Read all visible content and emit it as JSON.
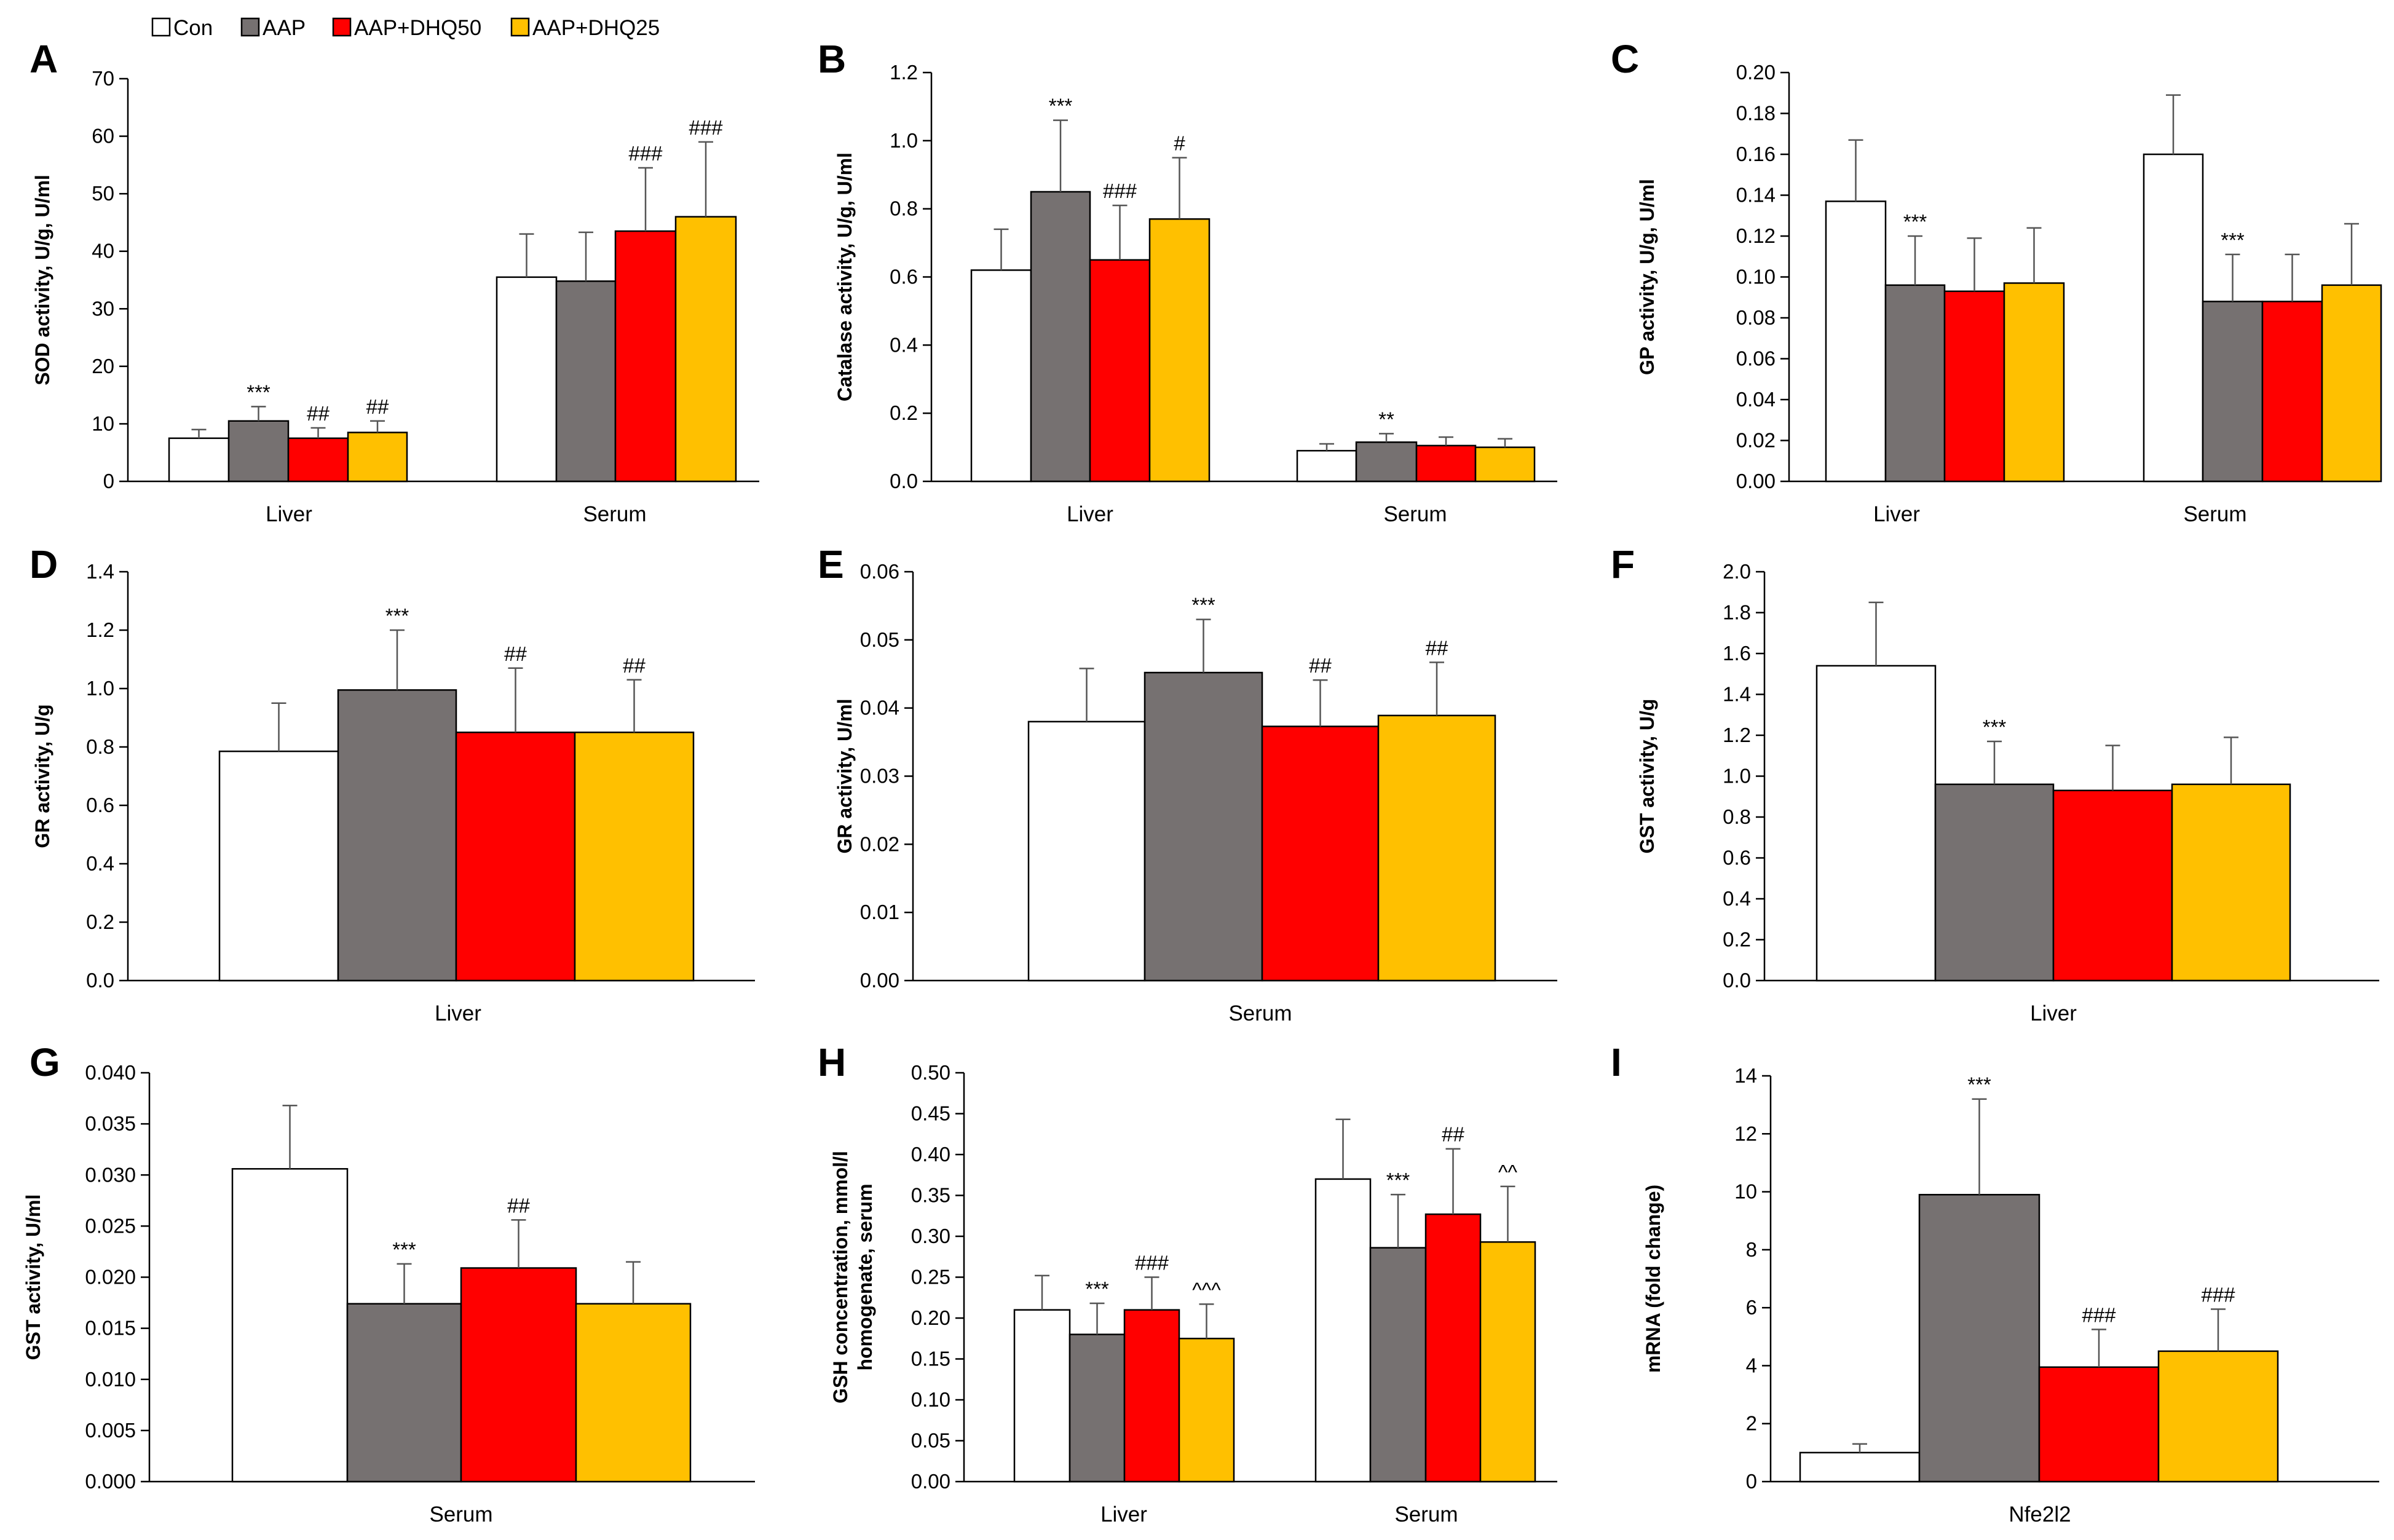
{
  "legend": {
    "entries": [
      {
        "label": "Con",
        "color": "#ffffff"
      },
      {
        "label": "AAP",
        "color": "#767171"
      },
      {
        "label": "AAP+DHQ50",
        "color": "#ff0000"
      },
      {
        "label": "AAP+DHQ25",
        "color": "#ffc000"
      }
    ]
  },
  "chart_data": [
    {
      "panel": "A",
      "type": "bar",
      "ylabel": "SOD activity, U/g, U/ml",
      "ylim": [
        0,
        70
      ],
      "yticks": [
        "0",
        "10",
        "20",
        "30",
        "40",
        "50",
        "60",
        "70"
      ],
      "categories": [
        "Liver",
        "Serum"
      ],
      "series": [
        {
          "name": "Con",
          "values": [
            7.5,
            35.5
          ],
          "errors": [
            1.5,
            7.5
          ],
          "sig": [
            "",
            ""
          ]
        },
        {
          "name": "AAP",
          "values": [
            10.5,
            34.8
          ],
          "errors": [
            2.5,
            8.5
          ],
          "sig": [
            "***",
            ""
          ]
        },
        {
          "name": "AAP+DHQ50",
          "values": [
            7.5,
            43.5
          ],
          "errors": [
            1.8,
            11.0
          ],
          "sig": [
            "##",
            "###"
          ]
        },
        {
          "name": "AAP+DHQ25",
          "values": [
            8.5,
            46.0
          ],
          "errors": [
            2.0,
            13.0
          ],
          "sig": [
            "##",
            "###"
          ]
        }
      ]
    },
    {
      "panel": "B",
      "type": "bar",
      "ylabel": "Catalase activity, U/g, U/ml",
      "ylim": [
        0,
        1.2
      ],
      "yticks": [
        "0.0",
        "0.2",
        "0.4",
        "0.6",
        "0.8",
        "1.0",
        "1.2"
      ],
      "categories": [
        "Liver",
        "Serum"
      ],
      "series": [
        {
          "name": "Con",
          "values": [
            0.62,
            0.09
          ],
          "errors": [
            0.12,
            0.02
          ],
          "sig": [
            "",
            ""
          ]
        },
        {
          "name": "AAP",
          "values": [
            0.85,
            0.115
          ],
          "errors": [
            0.21,
            0.025
          ],
          "sig": [
            "***",
            "**"
          ]
        },
        {
          "name": "AAP+DHQ50",
          "values": [
            0.65,
            0.105
          ],
          "errors": [
            0.16,
            0.025
          ],
          "sig": [
            "###",
            ""
          ]
        },
        {
          "name": "AAP+DHQ25",
          "values": [
            0.77,
            0.1
          ],
          "errors": [
            0.18,
            0.025
          ],
          "sig": [
            "#",
            ""
          ]
        }
      ]
    },
    {
      "panel": "C",
      "type": "bar",
      "ylabel": "GP activity, U/g, U/ml",
      "ylim": [
        0,
        0.2
      ],
      "yticks": [
        "0.00",
        "0.02",
        "0.04",
        "0.06",
        "0.08",
        "0.10",
        "0.12",
        "0.14",
        "0.16",
        "0.18",
        "0.20"
      ],
      "categories": [
        "Liver",
        "Serum"
      ],
      "series": [
        {
          "name": "Con",
          "values": [
            0.137,
            0.16
          ],
          "errors": [
            0.03,
            0.029
          ],
          "sig": [
            "",
            ""
          ]
        },
        {
          "name": "AAP",
          "values": [
            0.096,
            0.088
          ],
          "errors": [
            0.024,
            0.023
          ],
          "sig": [
            "***",
            "***"
          ]
        },
        {
          "name": "AAP+DHQ50",
          "values": [
            0.093,
            0.088
          ],
          "errors": [
            0.026,
            0.023
          ],
          "sig": [
            "",
            ""
          ]
        },
        {
          "name": "AAP+DHQ25",
          "values": [
            0.097,
            0.096
          ],
          "errors": [
            0.027,
            0.03
          ],
          "sig": [
            "",
            ""
          ]
        }
      ]
    },
    {
      "panel": "D",
      "type": "bar",
      "ylabel": "GR activity, U/g",
      "ylim": [
        0,
        1.4
      ],
      "yticks": [
        "0.0",
        "0.2",
        "0.4",
        "0.6",
        "0.8",
        "1.0",
        "1.2",
        "1.4"
      ],
      "categories": [
        "Liver"
      ],
      "series": [
        {
          "name": "Con",
          "values": [
            0.785
          ],
          "errors": [
            0.165
          ],
          "sig": [
            ""
          ]
        },
        {
          "name": "AAP",
          "values": [
            0.995
          ],
          "errors": [
            0.205
          ],
          "sig": [
            "***"
          ]
        },
        {
          "name": "AAP+DHQ50",
          "values": [
            0.85
          ],
          "errors": [
            0.22
          ],
          "sig": [
            "##"
          ]
        },
        {
          "name": "AAP+DHQ25",
          "values": [
            0.85
          ],
          "errors": [
            0.18
          ],
          "sig": [
            "##"
          ]
        }
      ]
    },
    {
      "panel": "E",
      "type": "bar",
      "ylabel": "GR activity, U/ml",
      "ylim": [
        0,
        0.06
      ],
      "yticks": [
        "0.00",
        "0.01",
        "0.02",
        "0.03",
        "0.04",
        "0.05",
        "0.06"
      ],
      "categories": [
        "Serum"
      ],
      "series": [
        {
          "name": "Con",
          "values": [
            0.038
          ],
          "errors": [
            0.0078
          ],
          "sig": [
            ""
          ]
        },
        {
          "name": "AAP",
          "values": [
            0.0452
          ],
          "errors": [
            0.0078
          ],
          "sig": [
            "***"
          ]
        },
        {
          "name": "AAP+DHQ50",
          "values": [
            0.0373
          ],
          "errors": [
            0.0068
          ],
          "sig": [
            "##"
          ]
        },
        {
          "name": "AAP+DHQ25",
          "values": [
            0.0389
          ],
          "errors": [
            0.0078
          ],
          "sig": [
            "##"
          ]
        }
      ]
    },
    {
      "panel": "F",
      "type": "bar",
      "ylabel": "GST activity, U/g",
      "ylim": [
        0,
        2.0
      ],
      "yticks": [
        "0.0",
        "0.2",
        "0.4",
        "0.6",
        "0.8",
        "1.0",
        "1.2",
        "1.4",
        "1.6",
        "1.8",
        "2.0"
      ],
      "categories": [
        "Liver"
      ],
      "series": [
        {
          "name": "Con",
          "values": [
            1.54
          ],
          "errors": [
            0.31
          ],
          "sig": [
            ""
          ]
        },
        {
          "name": "AAP",
          "values": [
            0.96
          ],
          "errors": [
            0.21
          ],
          "sig": [
            "***"
          ]
        },
        {
          "name": "AAP+DHQ50",
          "values": [
            0.93
          ],
          "errors": [
            0.22
          ],
          "sig": [
            ""
          ]
        },
        {
          "name": "AAP+DHQ25",
          "values": [
            0.96
          ],
          "errors": [
            0.23
          ],
          "sig": [
            ""
          ]
        }
      ]
    },
    {
      "panel": "G",
      "type": "bar",
      "ylabel": "GST activity, U/ml",
      "ylim": [
        0,
        0.04
      ],
      "yticks": [
        "0.000",
        "0.005",
        "0.010",
        "0.015",
        "0.020",
        "0.025",
        "0.030",
        "0.035",
        "0.040"
      ],
      "categories": [
        "Serum"
      ],
      "series": [
        {
          "name": "Con",
          "values": [
            0.0306
          ],
          "errors": [
            0.0062
          ],
          "sig": [
            ""
          ]
        },
        {
          "name": "AAP",
          "values": [
            0.0174
          ],
          "errors": [
            0.0039
          ],
          "sig": [
            "***"
          ]
        },
        {
          "name": "AAP+DHQ50",
          "values": [
            0.0209
          ],
          "errors": [
            0.0047
          ],
          "sig": [
            "##"
          ]
        },
        {
          "name": "AAP+DHQ25",
          "values": [
            0.0174
          ],
          "errors": [
            0.0041
          ],
          "sig": [
            ""
          ]
        }
      ]
    },
    {
      "panel": "H",
      "type": "bar",
      "ylabel": "GSH concentration, mmol/l homogenate, serum",
      "ylabel_lines": [
        "GSH concentration, mmol/l",
        "homogenate, serum"
      ],
      "ylim": [
        0,
        0.5
      ],
      "yticks": [
        "0.00",
        "0.05",
        "0.10",
        "0.15",
        "0.20",
        "0.25",
        "0.30",
        "0.35",
        "0.40",
        "0.45",
        "0.50"
      ],
      "categories": [
        "Liver",
        "Serum"
      ],
      "series": [
        {
          "name": "Con",
          "values": [
            0.21,
            0.37
          ],
          "errors": [
            0.042,
            0.073
          ],
          "sig": [
            "",
            ""
          ]
        },
        {
          "name": "AAP",
          "values": [
            0.18,
            0.286
          ],
          "errors": [
            0.038,
            0.065
          ],
          "sig": [
            "***",
            "***"
          ]
        },
        {
          "name": "AAP+DHQ50",
          "values": [
            0.21,
            0.327
          ],
          "errors": [
            0.04,
            0.08
          ],
          "sig": [
            "###",
            "##"
          ]
        },
        {
          "name": "AAP+DHQ25",
          "values": [
            0.175,
            0.293
          ],
          "errors": [
            0.042,
            0.068
          ],
          "sig": [
            "^^^",
            "^^"
          ]
        }
      ]
    },
    {
      "panel": "I",
      "type": "bar",
      "ylabel": "mRNA (fold change)",
      "ylim": [
        0,
        14
      ],
      "yticks": [
        "0",
        "2",
        "4",
        "6",
        "8",
        "10",
        "12",
        "14"
      ],
      "categories": [
        "Nfe2l2"
      ],
      "series": [
        {
          "name": "Con",
          "values": [
            1.0
          ],
          "errors": [
            0.3
          ],
          "sig": [
            ""
          ]
        },
        {
          "name": "AAP",
          "values": [
            9.9
          ],
          "errors": [
            3.3
          ],
          "sig": [
            "***"
          ]
        },
        {
          "name": "AAP+DHQ50",
          "values": [
            3.95
          ],
          "errors": [
            1.3
          ],
          "sig": [
            "###"
          ]
        },
        {
          "name": "AAP+DHQ25",
          "values": [
            4.5
          ],
          "errors": [
            1.45
          ],
          "sig": [
            "###"
          ]
        }
      ]
    }
  ]
}
